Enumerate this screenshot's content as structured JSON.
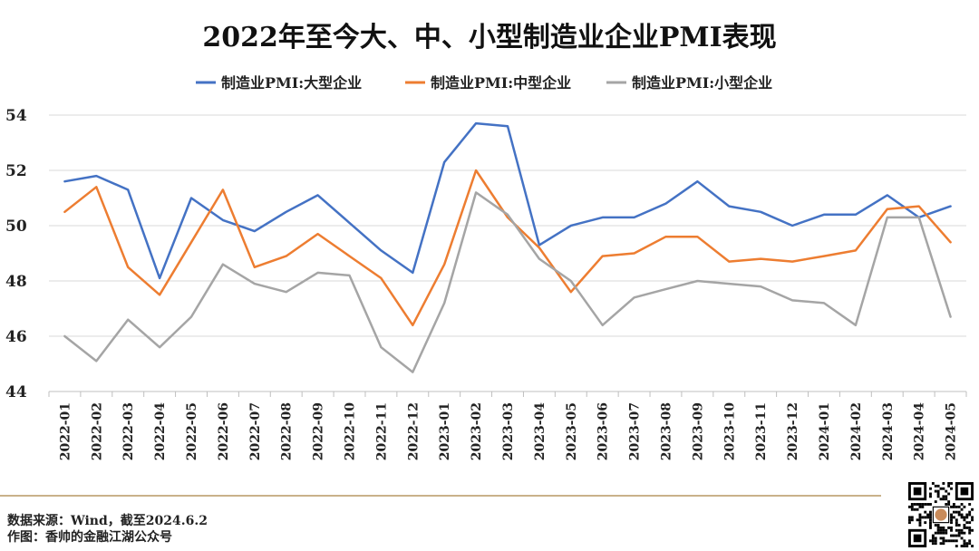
{
  "chart_data": {
    "type": "line",
    "title": "2022年至今大、中、小型制造业企业PMI表现",
    "categories": [
      "2022-01",
      "2022-02",
      "2022-03",
      "2022-04",
      "2022-05",
      "2022-06",
      "2022-07",
      "2022-08",
      "2022-09",
      "2022-10",
      "2022-11",
      "2022-12",
      "2023-01",
      "2023-02",
      "2023-03",
      "2023-04",
      "2023-05",
      "2023-06",
      "2023-07",
      "2023-08",
      "2023-09",
      "2023-10",
      "2023-11",
      "2023-12",
      "2024-01",
      "2024-02",
      "2024-03",
      "2024-04",
      "2024-05"
    ],
    "series": [
      {
        "name": "制造业PMI:大型企业",
        "color": "#4472C4",
        "values": [
          51.6,
          51.8,
          51.3,
          48.1,
          51.0,
          50.2,
          49.8,
          50.5,
          51.1,
          50.1,
          49.1,
          48.3,
          52.3,
          53.7,
          53.6,
          49.3,
          50.0,
          50.3,
          50.3,
          50.8,
          51.6,
          50.7,
          50.5,
          50.0,
          50.4,
          50.4,
          51.1,
          50.3,
          50.7
        ]
      },
      {
        "name": "制造业PMI:中型企业",
        "color": "#ED7D31",
        "values": [
          50.5,
          51.4,
          48.5,
          47.5,
          49.4,
          51.3,
          48.5,
          48.9,
          49.7,
          48.9,
          48.1,
          46.4,
          48.6,
          52.0,
          50.3,
          49.2,
          47.6,
          48.9,
          49.0,
          49.6,
          49.6,
          48.7,
          48.8,
          48.7,
          48.9,
          49.1,
          50.6,
          50.7,
          49.4
        ]
      },
      {
        "name": "制造业PMI:小型企业",
        "color": "#A5A5A5",
        "values": [
          46.0,
          45.1,
          46.6,
          45.6,
          46.7,
          48.6,
          47.9,
          47.6,
          48.3,
          48.2,
          45.6,
          44.7,
          47.2,
          51.2,
          50.4,
          48.8,
          48.0,
          46.4,
          47.4,
          47.7,
          48.0,
          47.9,
          47.8,
          47.3,
          47.2,
          46.4,
          50.3,
          50.3,
          46.7
        ]
      }
    ],
    "ylim": [
      44,
      54
    ],
    "yticks": [
      44,
      46,
      48,
      50,
      52,
      54
    ],
    "grid": true,
    "legend": "top"
  },
  "footer": {
    "source": "数据来源：Wind，截至2024.6.2",
    "author": "作图：香帅的金融江湖公众号"
  },
  "colors": {
    "accent_line": "#C9B18A"
  },
  "qr": {
    "icon": "qr-code-icon"
  }
}
